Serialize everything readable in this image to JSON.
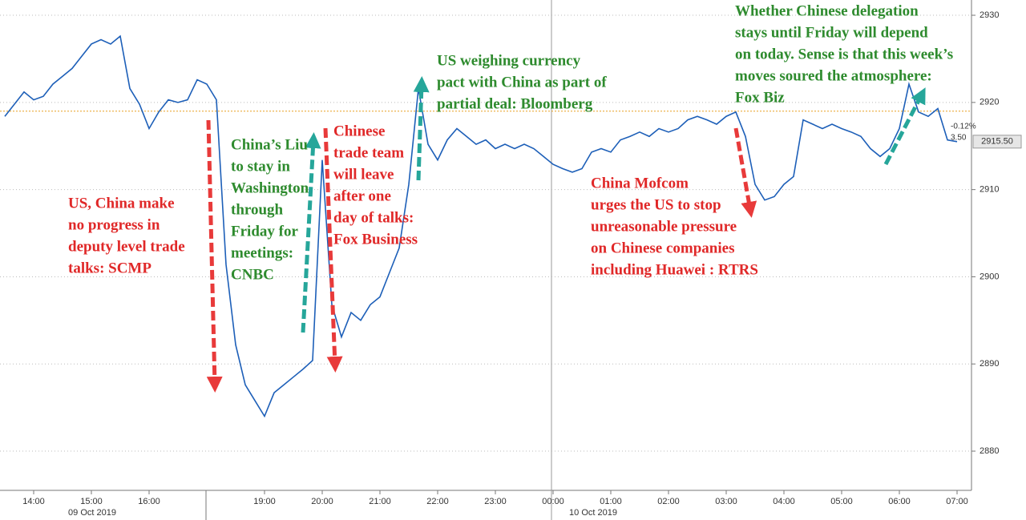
{
  "chart_data": {
    "type": "line",
    "categories": [
      null,
      null,
      null,
      "14:00",
      null,
      null,
      null,
      null,
      null,
      "15:00",
      null,
      null,
      null,
      null,
      null,
      "16:00",
      null,
      null,
      null,
      null,
      null,
      null,
      null,
      null,
      null,
      null,
      null,
      "19:00",
      null,
      null,
      null,
      null,
      null,
      "20:00",
      null,
      null,
      null,
      null,
      null,
      "21:00",
      null,
      null,
      null,
      null,
      null,
      "22:00",
      null,
      null,
      null,
      null,
      null,
      "23:00",
      null,
      null,
      null,
      null,
      null,
      "00:00",
      null,
      null,
      null,
      null,
      null,
      "01:00",
      null,
      null,
      null,
      null,
      null,
      "02:00",
      null,
      null,
      null,
      null,
      null,
      "03:00",
      null,
      null,
      null,
      null,
      null,
      "04:00",
      null,
      null,
      null,
      null,
      null,
      "05:00",
      null,
      null,
      null,
      null,
      null,
      "06:00",
      null,
      null,
      null,
      null,
      null,
      "07:00"
    ],
    "date_labels": [
      "09 Oct 2019",
      "10 Oct 2019"
    ],
    "series": [
      {
        "color": "#1d5fb8",
        "values": [
          2918.4,
          2919.8,
          2921.2,
          2920.3,
          2920.7,
          2922.1,
          2923,
          2923.9,
          2925.3,
          2926.7,
          2927.2,
          2926.7,
          2927.6,
          2921.6,
          2919.8,
          2917,
          2918.9,
          2920.3,
          2920,
          2920.3,
          2922.6,
          2922.1,
          2920.3,
          2901.4,
          2892.2,
          2887.6,
          2885.8,
          2884,
          2886.7,
          2887.6,
          2888.5,
          2889.4,
          2890.4,
          2913.4,
          2896.8,
          2893.1,
          2895.9,
          2895,
          2896.8,
          2897.7,
          2900.5,
          2903.3,
          2910.6,
          2921.6,
          2915.2,
          2913.4,
          2915.7,
          2917,
          2916.1,
          2915.2,
          2915.7,
          2914.7,
          2915.2,
          2914.7,
          2915.2,
          2914.7,
          2913.8,
          2912.9,
          2912.4,
          2912,
          2912.4,
          2914.3,
          2914.7,
          2914.3,
          2915.7,
          2916.1,
          2916.6,
          2916.1,
          2917,
          2916.6,
          2917,
          2918,
          2918.4,
          2918,
          2917.5,
          2918.4,
          2918.9,
          2916.1,
          2910.6,
          2908.8,
          2909.2,
          2910.6,
          2911.5,
          2918,
          2917.5,
          2917,
          2917.5,
          2917,
          2916.6,
          2916.1,
          2914.7,
          2913.8,
          2914.7,
          2917,
          2922.1,
          2918.9,
          2918.4,
          2919.3,
          2915.7,
          2915.5
        ],
        "value_labels": {
          "99": "2915.50"
        }
      }
    ],
    "reference_level": 2919,
    "reference_color": "#e8a020",
    "reference_labels": [
      "-0.12%",
      "3.50"
    ],
    "ylim": [
      2875.5,
      2931.75
    ],
    "yticks": [
      2880,
      2890,
      2900,
      2910,
      2920,
      2930
    ],
    "grid": true,
    "annotations": [
      {
        "color": "#e02828",
        "lines": [
          "US, China make",
          "no progress in",
          "deputy level trade",
          "talks: SCMP"
        ]
      },
      {
        "color": "#2e8b2e",
        "lines": [
          "China’s Liu",
          "to stay in",
          "Washington",
          "through",
          "Friday for",
          "meetings:",
          "CNBC"
        ]
      },
      {
        "color": "#e02828",
        "lines": [
          "Chinese",
          "trade team",
          "will leave",
          "after one",
          "day of  talks:",
          "Fox Business"
        ]
      },
      {
        "color": "#2e8b2e",
        "lines": [
          "US weighing currency",
          "pact with China as part of",
          "partial deal: Bloomberg"
        ]
      },
      {
        "color": "#e02828",
        "lines": [
          "China Mofcom",
          "urges the US to stop",
          "unreasonable pressure",
          "on Chinese companies",
          "including Huawei : RTRS"
        ]
      },
      {
        "color": "#2e8b2e",
        "lines": [
          "Whether Chinese delegation",
          "stays until Friday will depend",
          "on today.  Sense is that this week’s",
          "moves soured the atmosphere:",
          "Fox Biz"
        ]
      }
    ]
  }
}
